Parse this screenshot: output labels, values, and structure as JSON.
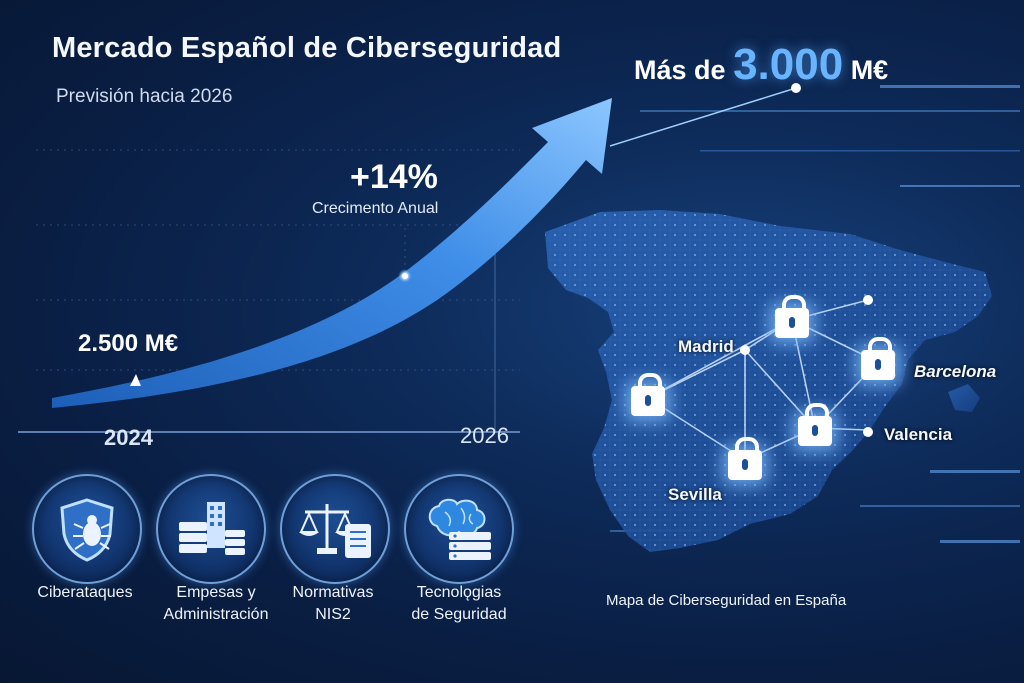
{
  "header": {
    "title": "Mercado Español de Ciberseguridad",
    "subtitle": "Previsión hacia 2026"
  },
  "forecast": {
    "prefix": "Más de",
    "value": "3.000",
    "unit": "M€",
    "growth_value": "+14%",
    "growth_label": "Crecimento Anual",
    "start_value": "2.500 M€",
    "start_year": "2024",
    "end_year": "2026"
  },
  "categories": [
    {
      "line1": "Ciberataques",
      "line2": "",
      "icon": "shield-bug-icon"
    },
    {
      "line1": "Empesas y",
      "line2": "Administración",
      "icon": "buildings-servers-icon"
    },
    {
      "line1": "Normativas",
      "line2": "NIS2",
      "icon": "scales-document-icon"
    },
    {
      "line1": "Tecnolǫgias",
      "line2": "de Seguridad",
      "icon": "brain-server-icon"
    }
  ],
  "map": {
    "cities": [
      "Madrid",
      "Barcelona",
      "Valencia",
      "Sevilla"
    ],
    "caption": "Mapa de Ciberseguridad en España"
  },
  "colors": {
    "background": "#0a1f45",
    "accent": "#69b4ff",
    "arrow": "#4f97e6"
  }
}
